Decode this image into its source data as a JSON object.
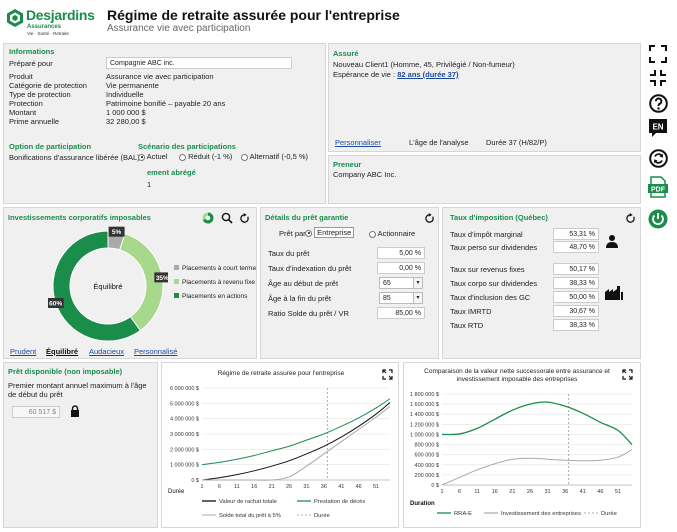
{
  "header": {
    "brand": "Desjardins",
    "brand_sub": "Assurances",
    "brand_tagline": "Vie · Santé · Retraite",
    "title": "Régime de retraite assurée pour l'entreprise",
    "subtitle": "Assurance vie avec participation"
  },
  "info": {
    "title": "Informations",
    "prepared_for_label": "Préparé pour",
    "prepared_for_value": "Compagnie ABC inc.",
    "rows": [
      {
        "label": "Produit",
        "value": "Assurance vie avec participation"
      },
      {
        "label": "Catégorie de protection",
        "value": "Vie permanente"
      },
      {
        "label": "Type de protection",
        "value": "Individuelle"
      },
      {
        "label": "Protection",
        "value": "Patrimoine bonifié – payable 20 ans"
      },
      {
        "label": "Montant",
        "value": "1 000 000 $"
      },
      {
        "label": "Prime annuelle",
        "value": "32 280,00 $"
      }
    ],
    "option_title": "Option de participation",
    "option_value": "Bonifications d'assurance libérée (BAL)",
    "scenario_title": "Scénario des participations",
    "scenarios": [
      "Actuel",
      "Réduit (-1 %)",
      "Alternatif (-0,5 %)"
    ],
    "scenario_selected": 0,
    "abridged_label": "ement abrégé",
    "abridged_value": "1"
  },
  "insured": {
    "title": "Assuré",
    "line1": "Nouveau Client1 (Homme, 45, Privilégié / Non-fumeur)",
    "life_label": "Espérance de vie :",
    "life_value": "82 ans (durée 37)",
    "customize": "Personnaliser",
    "analysis_label": "L'âge de l'analyse",
    "analysis_value": "Durée 37  (H/82/P)"
  },
  "borrower": {
    "title": "Preneur",
    "value": "Company ABC Inc."
  },
  "invest": {
    "title": "Investissements corporatifs imposables",
    "center": "Équilibré",
    "pct_labels": [
      "5%",
      "35%",
      "60%"
    ],
    "legend": [
      "Placements à court terme",
      "Placements à revenu fixe",
      "Placements en actions"
    ],
    "colors": [
      "#a9a9a9",
      "#a8d88b",
      "#1a8d4b"
    ],
    "slices": [
      5,
      35,
      60
    ],
    "profiles": [
      "Prudent",
      "Équilibré",
      "Audacieux",
      "Personnalisé"
    ],
    "profile_selected": 1
  },
  "loan": {
    "title": "Détails du prêt garantie",
    "by_label": "Prêt par",
    "by_options": [
      "Entreprise",
      "Actionnaire"
    ],
    "by_selected": 0,
    "rows": [
      {
        "label": "Taux du prêt",
        "value": "5,00 %"
      },
      {
        "label": "Taux d'indexation du prêt",
        "value": "0,00 %"
      },
      {
        "label": "Âge au début de prêt",
        "value": "65"
      },
      {
        "label": "Âge à la fin du prêt",
        "value": "85"
      },
      {
        "label": "Ratio Solde du prêt / VR",
        "value": "85,00 %"
      }
    ]
  },
  "tax": {
    "title": "Taux d'imposition (Québec)",
    "rows_person": [
      {
        "label": "Taux d'impôt marginal",
        "value": "53,31 %"
      },
      {
        "label": "Taux perso sur dividendes",
        "value": "48,70 %"
      }
    ],
    "rows_corp": [
      {
        "label": "Taux sur revenus fixes",
        "value": "50,17 %"
      },
      {
        "label": "Taux corpo sur dividendes",
        "value": "38,33 %"
      },
      {
        "label": "Taux d'inclusion des GC",
        "value": "50,00 %"
      },
      {
        "label": "Taux IMRTD",
        "value": "30,67 %"
      },
      {
        "label": "Taux RTD",
        "value": "38,33 %"
      }
    ]
  },
  "available": {
    "title": "Prêt disponible (non imposable)",
    "desc": "Premier montant annuel maximum à l'âge de début du prêt",
    "value": "60 517 $"
  },
  "chart_left": {
    "title": "Régime de retraite assurée pour l'entreprise",
    "xlabel": "Durée",
    "legend": [
      "Valeur de rachat totale",
      "Prestation de décès",
      "Solde total du prêt à 5%",
      "Durée"
    ]
  },
  "chart_right": {
    "title": "Comparaison de la valeur nette successorale entre assurance et investissement imposable des entreprises",
    "xlabel": "Duration",
    "legend": [
      "RRA-E",
      "Investissement des entreprises",
      "Durée"
    ]
  },
  "chart_data": [
    {
      "type": "line",
      "title": "Régime de retraite assurée pour l'entreprise",
      "xlabel": "Durée",
      "ylabel": "",
      "x": [
        1,
        6,
        11,
        16,
        21,
        26,
        31,
        36,
        41,
        46,
        51,
        55
      ],
      "xticks": [
        1,
        6,
        11,
        16,
        21,
        26,
        31,
        36,
        41,
        46,
        51
      ],
      "ylim": [
        0,
        6000000
      ],
      "yticks": [
        "0 $",
        "1 000 000 $",
        "2 000 000 $",
        "3 000 000 $",
        "4 000 000 $",
        "5 000 000 $",
        "6 000 000 $"
      ],
      "vline": 37,
      "series": [
        {
          "name": "Valeur de rachat totale",
          "color": "#111111",
          "values": [
            0,
            150000,
            350000,
            600000,
            900000,
            1250000,
            1700000,
            2200000,
            2800000,
            3500000,
            4300000,
            5050000
          ]
        },
        {
          "name": "Prestation de décès",
          "color": "#1a8d4b",
          "values": [
            1000000,
            1150000,
            1350000,
            1600000,
            1900000,
            2200000,
            2600000,
            3000000,
            3500000,
            4050000,
            4700000,
            5300000
          ]
        },
        {
          "name": "Solde total du prêt à 5%",
          "color": "#a9a9a9",
          "values": [
            0,
            0,
            0,
            0,
            0,
            200000,
            900000,
            1700000,
            2500000,
            3300000,
            4100000,
            4800000
          ]
        }
      ]
    },
    {
      "type": "line",
      "title": "Comparaison de la valeur nette successorale entre assurance et investissement imposable des entreprises",
      "xlabel": "Duration",
      "ylabel": "",
      "x": [
        1,
        6,
        11,
        16,
        21,
        26,
        31,
        36,
        41,
        46,
        51,
        55
      ],
      "xticks": [
        1,
        6,
        11,
        16,
        21,
        26,
        31,
        36,
        41,
        46,
        51
      ],
      "ylim": [
        0,
        1800000
      ],
      "yticks": [
        "0 $",
        "200 000 $",
        "400 000 $",
        "600 000 $",
        "800 000 $",
        "1 000 000 $",
        "1 200 000 $",
        "1 400 000 $",
        "1 600 000 $",
        "1 800 000 $"
      ],
      "vline": 37,
      "series": [
        {
          "name": "RRA-E",
          "color": "#1a8d4b",
          "values": [
            1000000,
            1010000,
            1120000,
            1300000,
            1480000,
            1600000,
            1640000,
            1560000,
            1420000,
            1240000,
            1080000,
            800000
          ]
        },
        {
          "name": "Investissement des entreprises",
          "color": "#a9a9a9",
          "values": [
            0,
            150000,
            300000,
            420000,
            510000,
            530000,
            510000,
            490000,
            480000,
            490000,
            550000,
            700000
          ]
        }
      ]
    }
  ]
}
